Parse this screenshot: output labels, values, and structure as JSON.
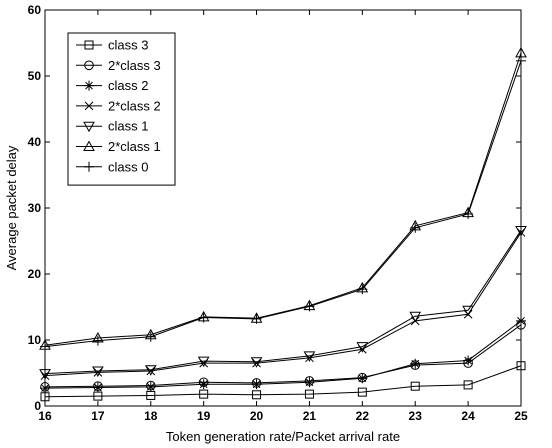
{
  "chart_data": {
    "type": "line",
    "title": "",
    "xlabel": "Token generation rate/Packet arrival rate",
    "ylabel": "Average packet delay",
    "x": [
      16,
      17,
      18,
      19,
      20,
      21,
      22,
      23,
      24,
      25
    ],
    "xlim": [
      16,
      25
    ],
    "ylim": [
      0,
      60
    ],
    "xticks": [
      16,
      17,
      18,
      19,
      20,
      21,
      22,
      23,
      24,
      25
    ],
    "yticks": [
      0,
      10,
      20,
      30,
      40,
      50,
      60
    ],
    "grid": false,
    "legend_position": "top-left",
    "series": [
      {
        "name": "class 3",
        "marker": "square",
        "values": [
          1.4,
          1.5,
          1.6,
          1.8,
          1.7,
          1.8,
          2.1,
          3.0,
          3.2,
          6.1
        ]
      },
      {
        "name": "2*class 3",
        "marker": "circle",
        "values": [
          2.9,
          3.0,
          3.1,
          3.6,
          3.5,
          3.8,
          4.3,
          6.2,
          6.5,
          12.3
        ]
      },
      {
        "name": "class 2",
        "marker": "asterisk",
        "values": [
          2.7,
          2.8,
          2.9,
          3.3,
          3.3,
          3.6,
          4.2,
          6.4,
          6.9,
          12.9
        ]
      },
      {
        "name": "2*class 2",
        "marker": "x",
        "values": [
          4.6,
          5.1,
          5.3,
          6.5,
          6.5,
          7.3,
          8.6,
          12.9,
          13.9,
          26.3
        ]
      },
      {
        "name": "class 1",
        "marker": "triangle-down",
        "values": [
          4.9,
          5.3,
          5.5,
          6.8,
          6.7,
          7.6,
          9.0,
          13.6,
          14.5,
          26.6
        ]
      },
      {
        "name": "2*class 1",
        "marker": "triangle-up",
        "values": [
          9.2,
          10.3,
          10.8,
          13.5,
          13.3,
          15.2,
          17.9,
          27.3,
          29.3,
          53.5
        ]
      },
      {
        "name": "class 0",
        "marker": "plus",
        "values": [
          9.0,
          9.9,
          10.5,
          13.4,
          13.2,
          15.1,
          17.7,
          27.0,
          29.1,
          52.3
        ]
      }
    ]
  }
}
